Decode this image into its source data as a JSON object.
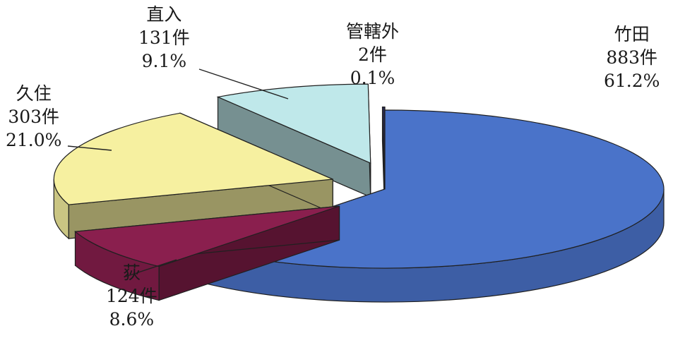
{
  "chart_data": {
    "type": "pie",
    "style": "3d-exploded",
    "unit": "件",
    "slices": [
      {
        "name": "竹田",
        "value": 883,
        "count_label": "883件",
        "percent": 61.2,
        "percent_label": "61.2%",
        "color": "#4a73c9"
      },
      {
        "name": "荻",
        "value": 124,
        "count_label": "124件",
        "percent": 8.6,
        "percent_label": "8.6%",
        "color": "#8a1f4e"
      },
      {
        "name": "久住",
        "value": 303,
        "count_label": "303件",
        "percent": 21.0,
        "percent_label": "21.0%",
        "color": "#f6f0a0"
      },
      {
        "name": "直入",
        "value": 131,
        "count_label": "131件",
        "percent": 9.1,
        "percent_label": "9.1%",
        "color": "#bfe8ea"
      },
      {
        "name": "管轄外",
        "value": 2,
        "count_label": "2件",
        "percent": 0.1,
        "percent_label": "0.1%",
        "color": "#2a2a52"
      }
    ]
  }
}
